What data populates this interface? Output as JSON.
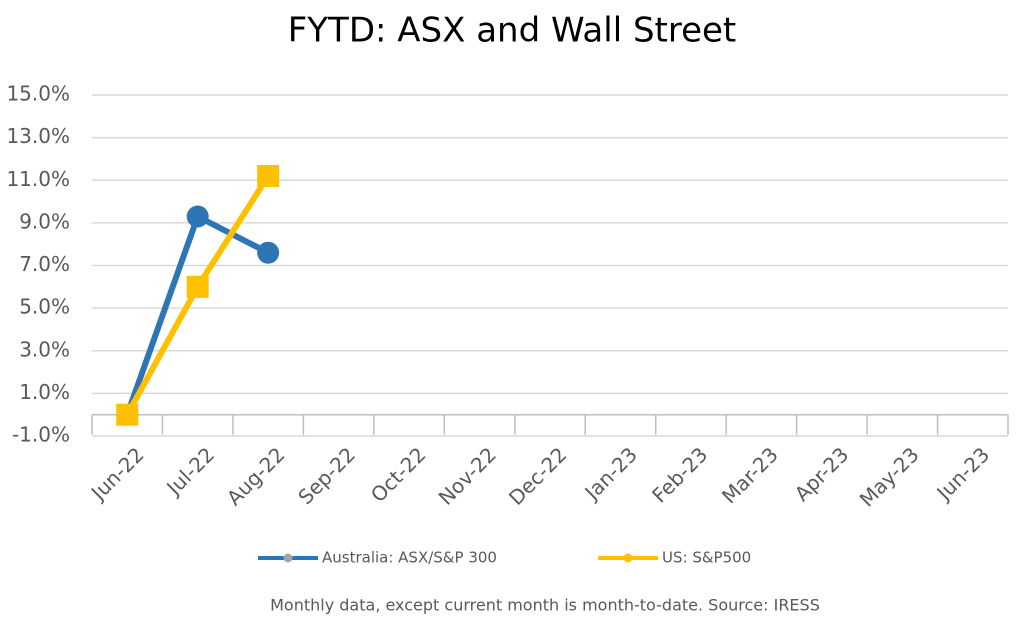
{
  "chart_data": {
    "type": "line",
    "title": "FYTD: ASX and Wall Street",
    "categories": [
      "Jun-22",
      "Jul-22",
      "Aug-22",
      "Sep-22",
      "Oct-22",
      "Nov-22",
      "Dec-22",
      "Jan-23",
      "Feb-23",
      "Mar-23",
      "Apr-23",
      "May-23",
      "Jun-23"
    ],
    "series": [
      {
        "name": "Australia: ASX/S&P 300",
        "color": "#2e75b6",
        "marker": "circle",
        "values": [
          0,
          9.3,
          7.6,
          null,
          null,
          null,
          null,
          null,
          null,
          null,
          null,
          null,
          null
        ]
      },
      {
        "name": "US: S&P500",
        "color": "#ffc000",
        "marker": "square",
        "values": [
          0,
          6.0,
          11.2,
          null,
          null,
          null,
          null,
          null,
          null,
          null,
          null,
          null,
          null
        ]
      }
    ],
    "ylim": [
      -1,
      15
    ],
    "yticks": [
      {
        "value": -1,
        "label": "-1.0%"
      },
      {
        "value": 1,
        "label": "1.0%"
      },
      {
        "value": 3,
        "label": "3.0%"
      },
      {
        "value": 5,
        "label": "5.0%"
      },
      {
        "value": 7,
        "label": "7.0%"
      },
      {
        "value": 9,
        "label": "9.0%"
      },
      {
        "value": 11,
        "label": "11.0%"
      },
      {
        "value": 13,
        "label": "13.0%"
      },
      {
        "value": 15,
        "label": "15.0%"
      }
    ],
    "grid": true,
    "legend": "bottom",
    "note": "Monthly data, except current month is month-to-date.  Source: IRESS"
  }
}
